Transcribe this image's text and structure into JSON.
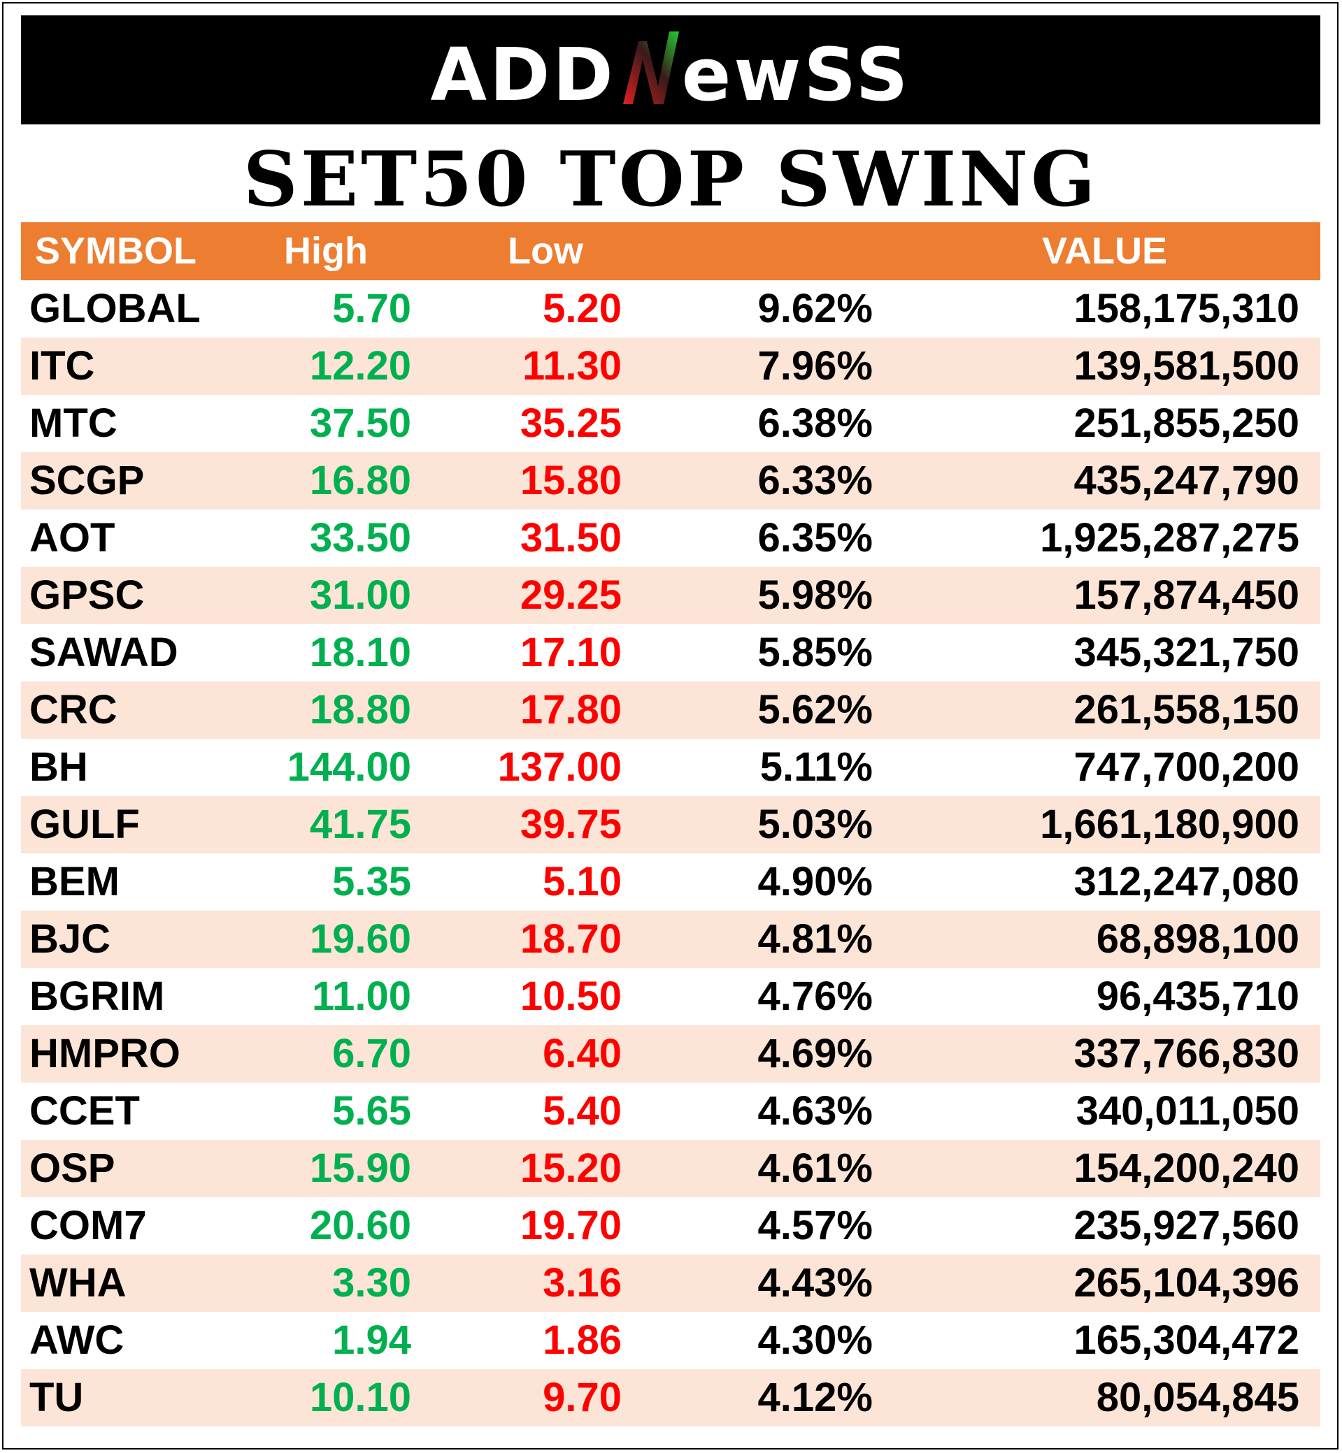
{
  "brand": {
    "logo_text_left": "ADD",
    "logo_text_right": "ewSS",
    "logo_mark": "N"
  },
  "title": "SET50 TOP SWING",
  "headers": {
    "symbol": "SYMBOL",
    "high": "High",
    "low": "Low",
    "pct": "",
    "value": "VALUE"
  },
  "colors": {
    "header_bg": "#ed7d31",
    "alt_row_bg": "#fce4d6",
    "high": "#00b050",
    "low": "#ff0000",
    "banner": "#000000"
  },
  "rows": [
    {
      "symbol": "GLOBAL",
      "high": "5.70",
      "low": "5.20",
      "pct": "9.62%",
      "value": "158,175,310"
    },
    {
      "symbol": "ITC",
      "high": "12.20",
      "low": "11.30",
      "pct": "7.96%",
      "value": "139,581,500"
    },
    {
      "symbol": "MTC",
      "high": "37.50",
      "low": "35.25",
      "pct": "6.38%",
      "value": "251,855,250"
    },
    {
      "symbol": "SCGP",
      "high": "16.80",
      "low": "15.80",
      "pct": "6.33%",
      "value": "435,247,790"
    },
    {
      "symbol": "AOT",
      "high": "33.50",
      "low": "31.50",
      "pct": "6.35%",
      "value": "1,925,287,275"
    },
    {
      "symbol": "GPSC",
      "high": "31.00",
      "low": "29.25",
      "pct": "5.98%",
      "value": "157,874,450"
    },
    {
      "symbol": "SAWAD",
      "high": "18.10",
      "low": "17.10",
      "pct": "5.85%",
      "value": "345,321,750"
    },
    {
      "symbol": "CRC",
      "high": "18.80",
      "low": "17.80",
      "pct": "5.62%",
      "value": "261,558,150"
    },
    {
      "symbol": "BH",
      "high": "144.00",
      "low": "137.00",
      "pct": "5.11%",
      "value": "747,700,200"
    },
    {
      "symbol": "GULF",
      "high": "41.75",
      "low": "39.75",
      "pct": "5.03%",
      "value": "1,661,180,900"
    },
    {
      "symbol": "BEM",
      "high": "5.35",
      "low": "5.10",
      "pct": "4.90%",
      "value": "312,247,080"
    },
    {
      "symbol": "BJC",
      "high": "19.60",
      "low": "18.70",
      "pct": "4.81%",
      "value": "68,898,100"
    },
    {
      "symbol": "BGRIM",
      "high": "11.00",
      "low": "10.50",
      "pct": "4.76%",
      "value": "96,435,710"
    },
    {
      "symbol": "HMPRO",
      "high": "6.70",
      "low": "6.40",
      "pct": "4.69%",
      "value": "337,766,830"
    },
    {
      "symbol": "CCET",
      "high": "5.65",
      "low": "5.40",
      "pct": "4.63%",
      "value": "340,011,050"
    },
    {
      "symbol": "OSP",
      "high": "15.90",
      "low": "15.20",
      "pct": "4.61%",
      "value": "154,200,240"
    },
    {
      "symbol": "COM7",
      "high": "20.60",
      "low": "19.70",
      "pct": "4.57%",
      "value": "235,927,560"
    },
    {
      "symbol": "WHA",
      "high": "3.30",
      "low": "3.16",
      "pct": "4.43%",
      "value": "265,104,396"
    },
    {
      "symbol": "AWC",
      "high": "1.94",
      "low": "1.86",
      "pct": "4.30%",
      "value": "165,304,472"
    },
    {
      "symbol": "TU",
      "high": "10.10",
      "low": "9.70",
      "pct": "4.12%",
      "value": "80,054,845"
    }
  ]
}
